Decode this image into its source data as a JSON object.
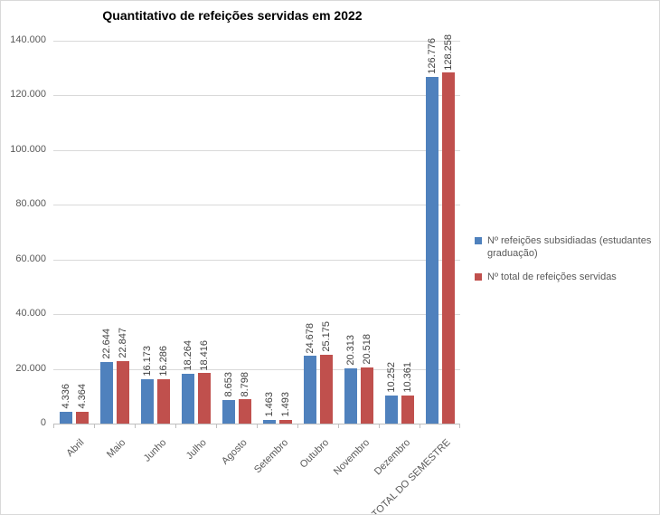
{
  "chart_data": {
    "type": "bar",
    "title": "Quantitativo de refeições servidas em 2022",
    "categories": [
      "Abril",
      "Maio",
      "Junho",
      "Julho",
      "Agosto",
      "Setembro",
      "Outubro",
      "Novembro",
      "Dezembro",
      "TOTAL DO SEMESTRE"
    ],
    "series": [
      {
        "name": "Nº refeições subsidiadas (estudantes graduação)",
        "color": "#4F81BD",
        "values": [
          4336,
          22644,
          16173,
          18264,
          8653,
          1463,
          24678,
          20313,
          10252,
          126776
        ],
        "labels": [
          "4.336",
          "22.644",
          "16.173",
          "18.264",
          "8.653",
          "1.463",
          "24.678",
          "20.313",
          "10.252",
          "126.776"
        ]
      },
      {
        "name": "Nº total de refeições servidas",
        "color": "#C0504D",
        "values": [
          4364,
          22847,
          16286,
          18416,
          8798,
          1493,
          25175,
          20518,
          10361,
          128258
        ],
        "labels": [
          "4.364",
          "22.847",
          "16.286",
          "18.416",
          "8.798",
          "1.493",
          "25.175",
          "20.518",
          "10.361",
          "128.258"
        ]
      }
    ],
    "ylim": [
      0,
      140000
    ],
    "yticks": [
      {
        "value": 0,
        "label": "0"
      },
      {
        "value": 20000,
        "label": "20.000"
      },
      {
        "value": 40000,
        "label": "40.000"
      },
      {
        "value": 60000,
        "label": "60.000"
      },
      {
        "value": 80000,
        "label": "80.000"
      },
      {
        "value": 100000,
        "label": "100.000"
      },
      {
        "value": 120000,
        "label": "120.000"
      },
      {
        "value": 140000,
        "label": "140.000"
      }
    ],
    "grid": true,
    "legend_position": "right"
  },
  "colors": {
    "gridline": "#d9d9d9",
    "axis_line": "#bfbfbf",
    "tick_text": "#595959",
    "data_label_text": "#404040",
    "title_text": "#000000"
  }
}
